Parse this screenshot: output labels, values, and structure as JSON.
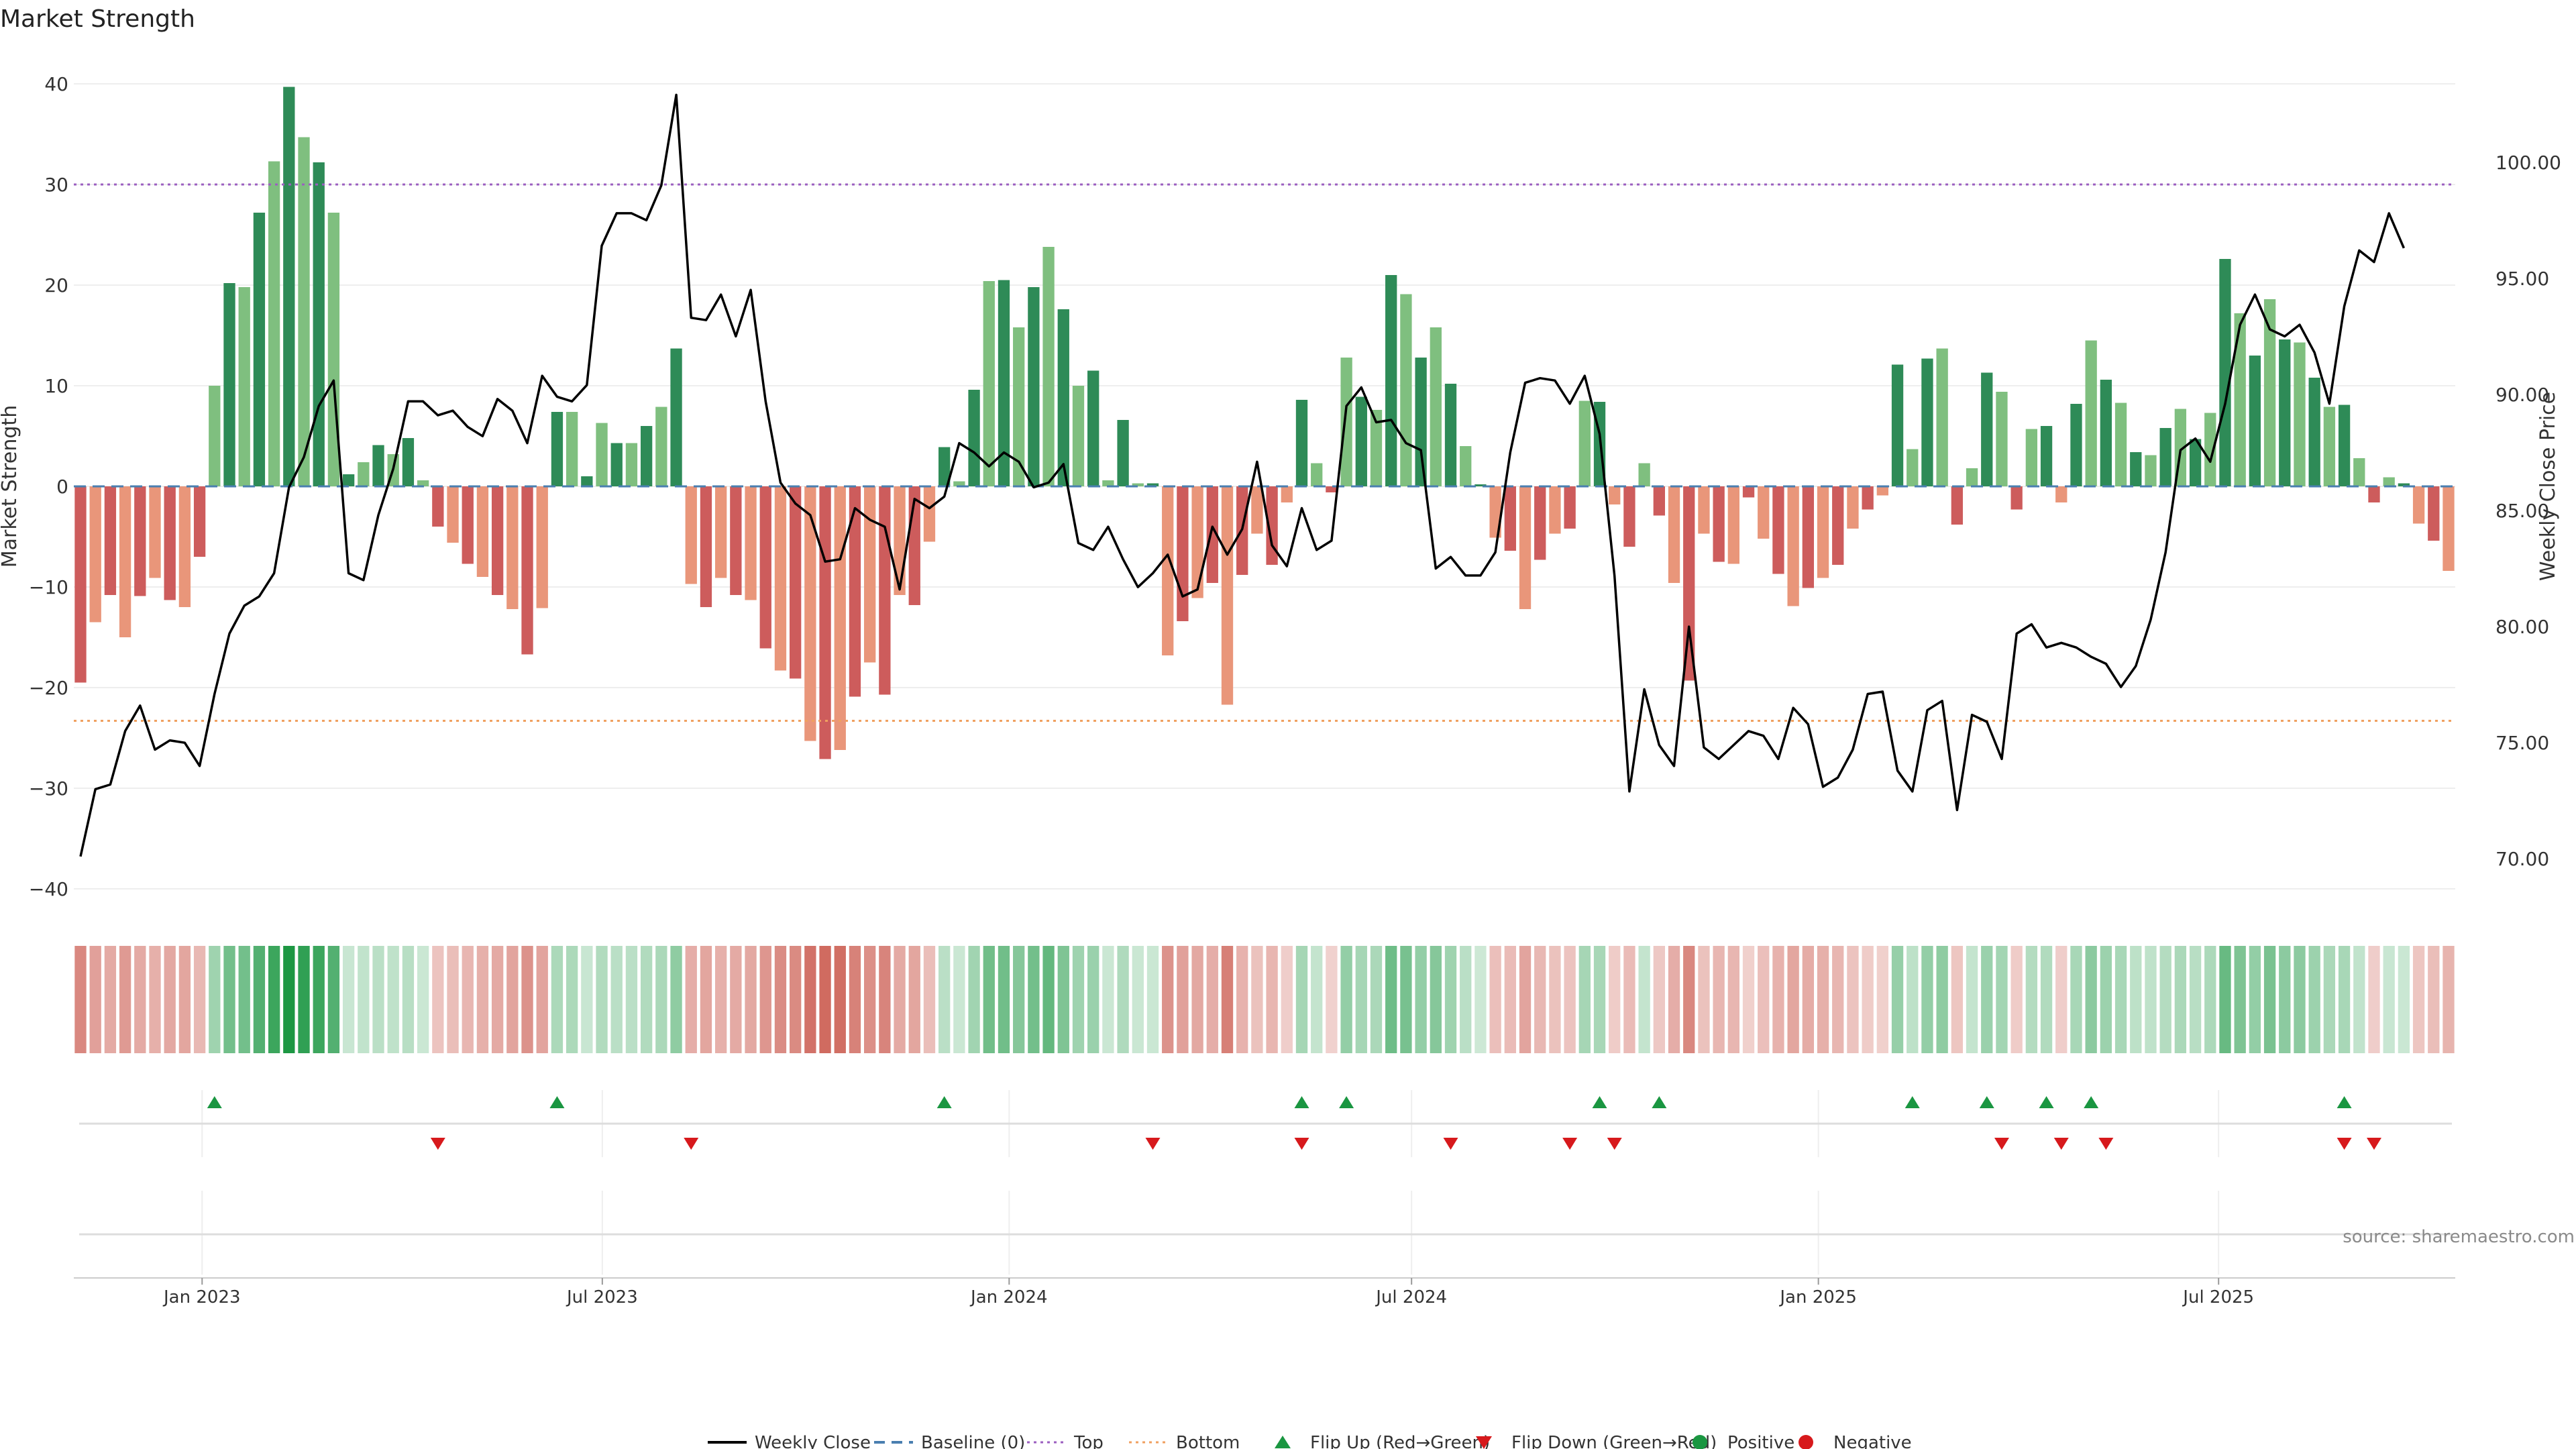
{
  "chart_data": {
    "type": "bar",
    "title": "Market Strength",
    "ylabel": "Market Strength",
    "y2label": "Weekly Close Price",
    "source": "source: sharemaestro.com",
    "x_start": "2022-11-07",
    "x_end": "2025-10-13",
    "ylim": [
      -42,
      42
    ],
    "y2lim": [
      67.84,
      104.24
    ],
    "yticks": [
      "40",
      "30",
      "20",
      "10",
      "0",
      "−10",
      "−20",
      "−30",
      "−40"
    ],
    "y2ticks": [
      "100.00",
      "95.00",
      "90.00",
      "85.00",
      "80.00",
      "75.00",
      "70.00"
    ],
    "xticks": [
      {
        "date": "2023-01-01",
        "label": "Jan 2023"
      },
      {
        "date": "2023-07-01",
        "label": "Jul 2023"
      },
      {
        "date": "2024-01-01",
        "label": "Jan 2024"
      },
      {
        "date": "2024-07-01",
        "label": "Jul 2024"
      },
      {
        "date": "2025-01-01",
        "label": "Jan 2025"
      },
      {
        "date": "2025-07-01",
        "label": "Jul 2025"
      }
    ],
    "top_line": 30,
    "bottom_line": -23.3,
    "strength": [
      -19.5,
      -13.5,
      -10.8,
      -15,
      -10.9,
      -9.1,
      -11.3,
      -12,
      -7,
      10,
      20.2,
      19.8,
      27.2,
      32.3,
      39.7,
      34.7,
      32.2,
      27.2,
      1.2,
      2.4,
      4.1,
      3.2,
      4.8,
      0.6,
      -4,
      -5.6,
      -7.7,
      -9,
      -10.8,
      -12.2,
      -16.7,
      -12.1,
      7.4,
      7.4,
      1,
      6.3,
      4.3,
      4.3,
      6,
      7.9,
      13.7,
      -9.7,
      -12,
      -9.1,
      -10.8,
      -11.3,
      -16.1,
      -18.3,
      -19.1,
      -25.3,
      -27.1,
      -26.2,
      -20.9,
      -17.5,
      -20.7,
      -10.8,
      -11.8,
      -5.5,
      3.9,
      0.5,
      9.6,
      20.4,
      20.5,
      15.8,
      19.8,
      23.8,
      17.6,
      10,
      11.5,
      0.6,
      6.6,
      0.3,
      0.3,
      -16.8,
      -13.4,
      -11.1,
      -9.6,
      -21.7,
      -8.8,
      -4.7,
      -7.8,
      -1.6,
      8.6,
      2.3,
      -0.6,
      12.8,
      8.9,
      7.6,
      21,
      19.1,
      12.8,
      15.8,
      10.2,
      4,
      0.2,
      -5.1,
      -6.4,
      -12.2,
      -7.3,
      -4.7,
      -4.2,
      8.5,
      8.4,
      -1.8,
      -6,
      2.3,
      -2.9,
      -9.6,
      -19.3,
      -4.7,
      -7.5,
      -7.7,
      -1.1,
      -5.2,
      -8.7,
      -11.9,
      -10.1,
      -9.1,
      -7.8,
      -4.2,
      -2.3,
      -0.9,
      12.1,
      3.7,
      12.7,
      13.7,
      -3.8,
      1.8,
      11.3,
      9.4,
      -2.3,
      5.7,
      6,
      -1.6,
      8.2,
      14.5,
      10.6,
      8.3,
      3.4,
      3.1,
      5.8,
      7.7,
      4.7,
      7.3,
      22.6,
      17.2,
      13,
      18.6,
      14.6,
      14.3,
      10.8,
      7.9,
      8.1,
      2.8,
      -1.6,
      0.9,
      0.3,
      -3.7,
      -5.4,
      -8.4
    ],
    "price": [
      70.1,
      73,
      73.2,
      75.5,
      76.6,
      74.7,
      75.1,
      75,
      74,
      77.1,
      79.7,
      80.9,
      81.3,
      82.3,
      86,
      87.3,
      89.5,
      90.6,
      82.3,
      82,
      84.8,
      86.8,
      89.7,
      89.7,
      89.1,
      89.3,
      88.6,
      88.2,
      89.8,
      89.3,
      87.9,
      90.8,
      89.9,
      89.7,
      90.4,
      96.4,
      97.8,
      97.8,
      97.5,
      99,
      102.9,
      93.3,
      93.2,
      94.3,
      92.5,
      94.5,
      89.7,
      86.2,
      85.3,
      84.8,
      82.8,
      82.9,
      85.1,
      84.6,
      84.3,
      81.6,
      85.5,
      85.1,
      85.6,
      87.9,
      87.5,
      86.9,
      87.5,
      87.1,
      86,
      86.2,
      87,
      83.6,
      83.3,
      84.3,
      82.9,
      81.7,
      82.3,
      83.1,
      81.3,
      81.6,
      84.3,
      83.1,
      84.2,
      87.1,
      83.5,
      82.6,
      85.1,
      83.3,
      83.7,
      89.5,
      90.3,
      88.8,
      88.9,
      87.9,
      87.6,
      82.5,
      83,
      82.2,
      82.2,
      83.2,
      87.5,
      90.5,
      90.7,
      90.6,
      89.6,
      90.8,
      88.3,
      82.2,
      72.9,
      77.3,
      74.9,
      74,
      80,
      74.8,
      74.3,
      74.9,
      75.5,
      75.3,
      74.3,
      76.5,
      75.8,
      73.1,
      73.5,
      74.7,
      77.1,
      77.2,
      73.8,
      72.9,
      76.4,
      76.8,
      72.1,
      76.2,
      75.9,
      74.3,
      79.7,
      80.1,
      79.1,
      79.3,
      79.1,
      78.7,
      78.4,
      77.4,
      78.3,
      80.3,
      83.2,
      87.6,
      88.1,
      87.1,
      89.6,
      93,
      94.3,
      92.8,
      92.5,
      93,
      91.8,
      89.6,
      93.8,
      96.2,
      95.7,
      97.8,
      96.3
    ],
    "flip_up_weeks": [
      9,
      32,
      58,
      82,
      85,
      102,
      106,
      123,
      128,
      132,
      135,
      152
    ],
    "flip_down_weeks": [
      24,
      41,
      72,
      82,
      92,
      100,
      103,
      129,
      133,
      136,
      152,
      154
    ],
    "legend": [
      {
        "label": "Weekly Close",
        "kind": "line",
        "color": "#000000"
      },
      {
        "label": "Baseline (0)",
        "kind": "dash",
        "color": "#4a7fb0"
      },
      {
        "label": "Top",
        "kind": "dot",
        "color": "#9b5fc0"
      },
      {
        "label": "Bottom",
        "kind": "dot",
        "color": "#f0a060"
      },
      {
        "label": "Flip Up (Red→Green)",
        "kind": "up",
        "color": "#1a9641"
      },
      {
        "label": "Flip Down (Green→Red)",
        "kind": "down",
        "color": "#d7191c"
      },
      {
        "label": "Positive",
        "kind": "dot-marker",
        "color": "#1a9641"
      },
      {
        "label": "Negative",
        "kind": "dot-marker",
        "color": "#d7191c"
      }
    ],
    "colors": {
      "pos_dark": "#2e8b57",
      "pos_light": "#7fbf7f",
      "neg_dark": "#cd5c5c",
      "neg_light": "#e9967a",
      "heat_pos": "#1a9641",
      "heat_neg": "#c0392b",
      "up_marker": "#1a9641",
      "down_marker": "#d7191c",
      "top_line": "#9b5fc0",
      "bottom_line": "#f0a060",
      "baseline": "#4a7fb0"
    }
  }
}
